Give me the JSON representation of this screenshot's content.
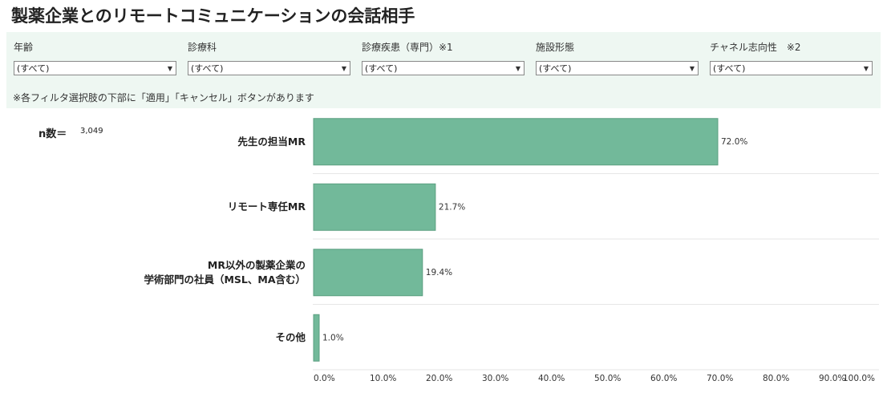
{
  "title": "製薬企業とのリモートコミュニケーションの会話相手",
  "filters": [
    {
      "label": "年齢",
      "value": "(すべて)"
    },
    {
      "label": "診療科",
      "value": "(すべて)"
    },
    {
      "label": "診療疾患（専門）※1",
      "value": "(すべて)"
    },
    {
      "label": "施設形態",
      "value": "(すべて)"
    },
    {
      "label": "チャネル志向性　※2",
      "value": "(すべて)"
    }
  ],
  "note": "※各フィルタ選択肢の下部に「適用」「キャンセル」ボタンがあります",
  "n_label": "n数＝",
  "n_value": "3,049",
  "chart_data": {
    "type": "bar",
    "orientation": "horizontal",
    "categories": [
      "先生の担当MR",
      "リモート専任MR",
      "MR以外の製薬企業の\n学術部門の社員（MSL、MA含む）",
      "その他"
    ],
    "values": [
      72.0,
      21.7,
      19.4,
      1.0
    ],
    "value_labels": [
      "72.0%",
      "21.7%",
      "19.4%",
      "1.0%"
    ],
    "color": "#72b99a",
    "xlim": [
      0,
      100
    ],
    "xticks": [
      {
        "value": 0,
        "label": "0.0%"
      },
      {
        "value": 10,
        "label": "10.0%"
      },
      {
        "value": 20,
        "label": "20.0%"
      },
      {
        "value": 30,
        "label": "30.0%"
      },
      {
        "value": 40,
        "label": "40.0%"
      },
      {
        "value": 50,
        "label": "50.0%"
      },
      {
        "value": 60,
        "label": "60.0%"
      },
      {
        "value": 70,
        "label": "70.0%"
      },
      {
        "value": 80,
        "label": "80.0%"
      },
      {
        "value": 90,
        "label": "90.0%"
      },
      {
        "value": 100,
        "label": "100.0%"
      }
    ]
  }
}
